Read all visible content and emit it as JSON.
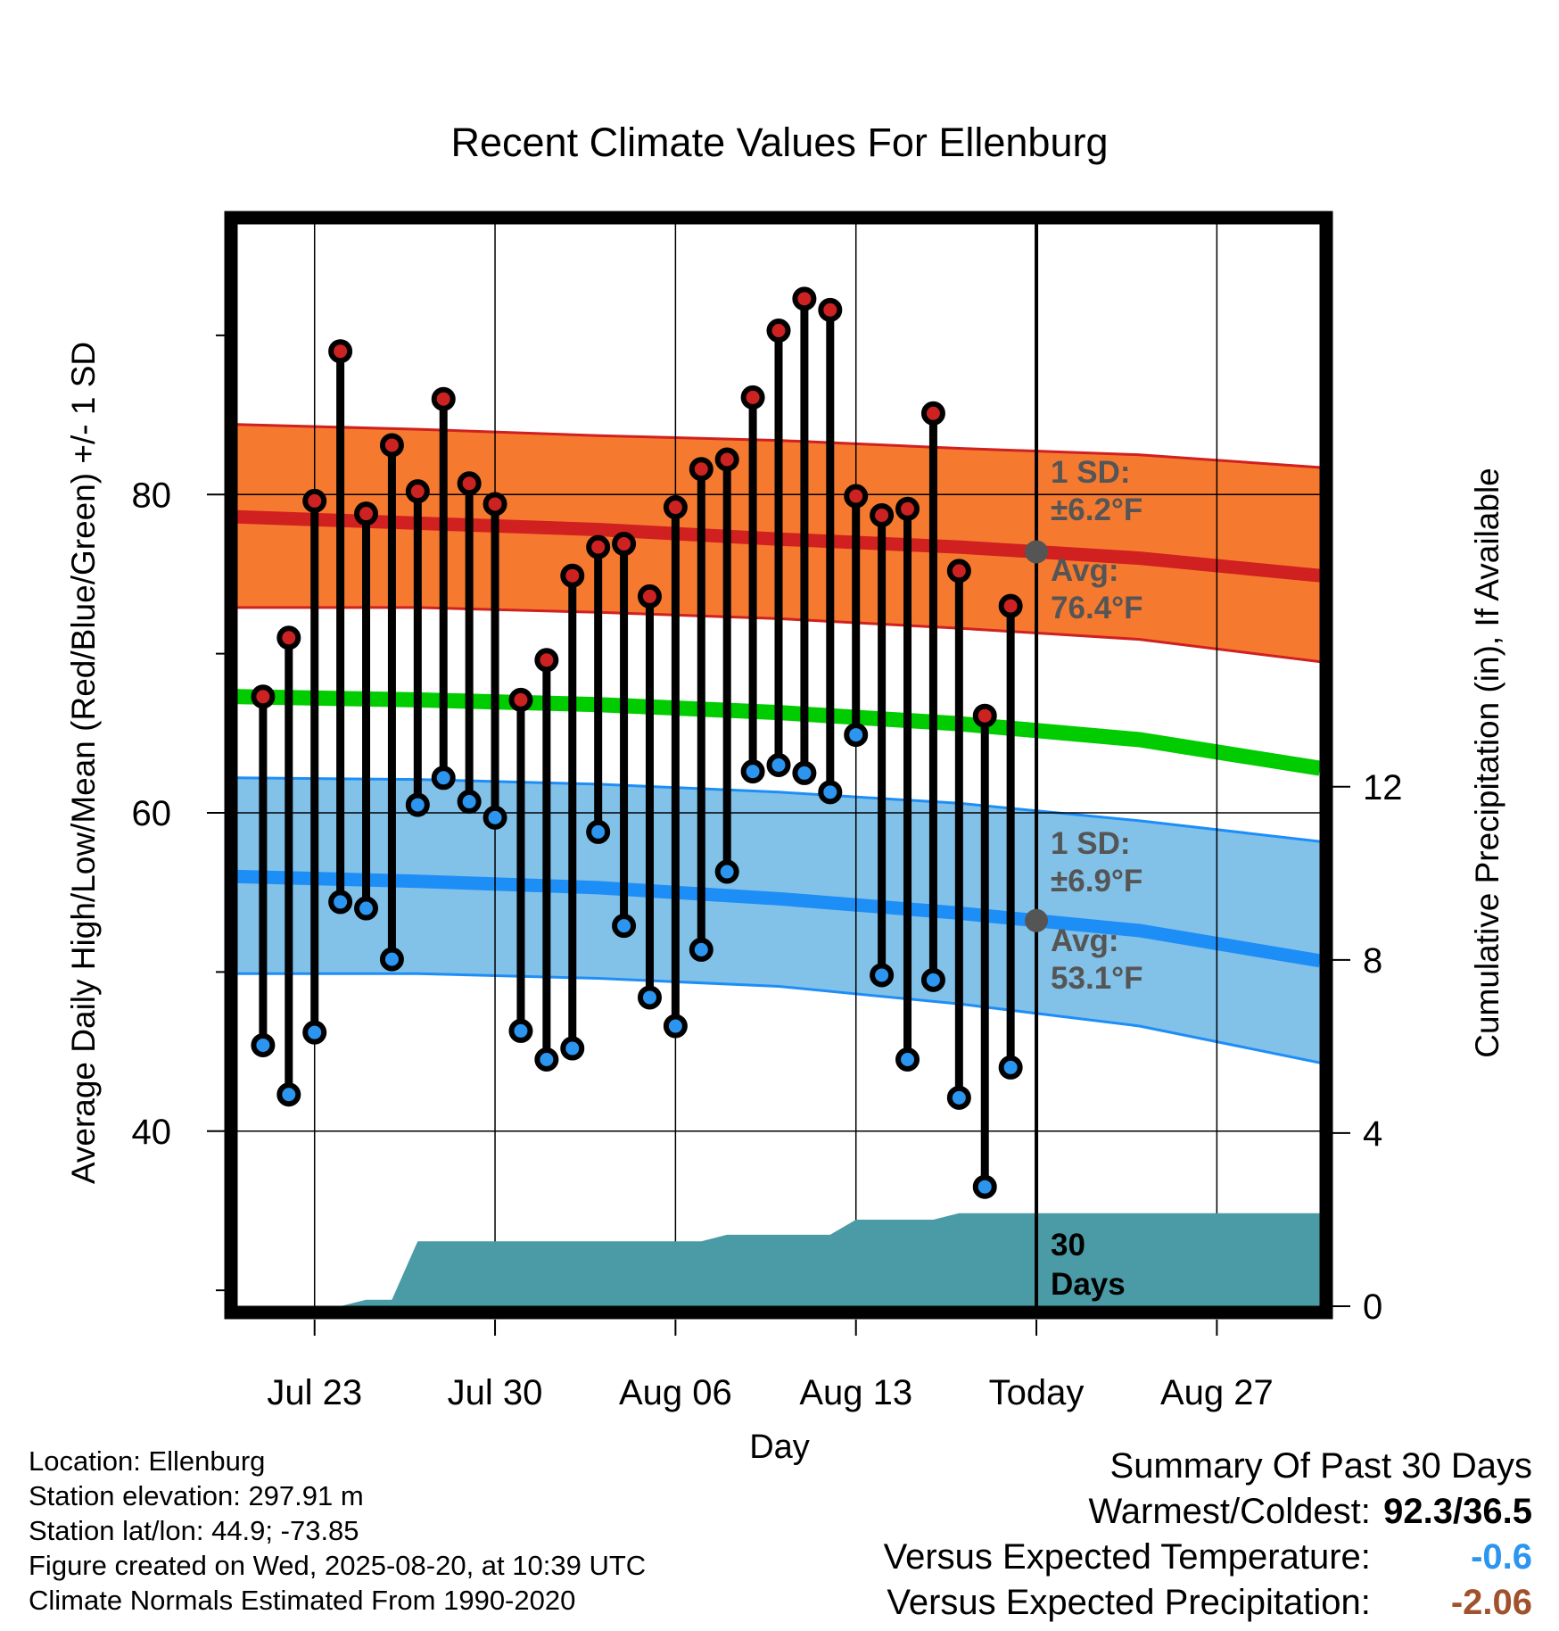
{
  "chart_data": {
    "type": "line",
    "title": "Recent Climate Values For Ellenburg",
    "xlabel": "Day",
    "ylabel_left": "Average Daily High/Low/Mean (Red/Blue/Green) +/- 1 SD",
    "ylabel_right": "Cumulative Precipitation (in), If Available",
    "x_range": [
      "2025-07-20",
      "2025-08-31"
    ],
    "ylim_left": [
      29,
      97
    ],
    "ylim_right": [
      0,
      25
    ],
    "x_ticks": [
      {
        "date": "2025-07-23",
        "label": "Jul 23"
      },
      {
        "date": "2025-07-30",
        "label": "Jul 30"
      },
      {
        "date": "2025-08-06",
        "label": "Aug 06"
      },
      {
        "date": "2025-08-13",
        "label": "Aug 13"
      },
      {
        "date": "2025-08-20",
        "label": "Today"
      },
      {
        "date": "2025-08-27",
        "label": "Aug 27"
      }
    ],
    "y_ticks_left": [
      40,
      60,
      80
    ],
    "y_minor_ticks_left": [
      30,
      50,
      70,
      90
    ],
    "y_ticks_right": [
      0,
      4,
      8,
      12
    ],
    "grid": true,
    "today": "2025-08-20",
    "daily": [
      {
        "date": "2025-07-21",
        "high": 67.3,
        "low": 45.4
      },
      {
        "date": "2025-07-22",
        "high": 71.0,
        "low": 42.3
      },
      {
        "date": "2025-07-23",
        "high": 79.6,
        "low": 46.2
      },
      {
        "date": "2025-07-24",
        "high": 89.0,
        "low": 54.4
      },
      {
        "date": "2025-07-25",
        "high": 78.8,
        "low": 54.0
      },
      {
        "date": "2025-07-26",
        "high": 83.1,
        "low": 50.8
      },
      {
        "date": "2025-07-27",
        "high": 80.2,
        "low": 60.5
      },
      {
        "date": "2025-07-28",
        "high": 86.0,
        "low": 62.2
      },
      {
        "date": "2025-07-29",
        "high": 80.7,
        "low": 60.7
      },
      {
        "date": "2025-07-30",
        "high": 79.4,
        "low": 59.7
      },
      {
        "date": "2025-07-31",
        "high": 67.1,
        "low": 46.3
      },
      {
        "date": "2025-08-01",
        "high": 69.6,
        "low": 44.5
      },
      {
        "date": "2025-08-02",
        "high": 74.9,
        "low": 45.2
      },
      {
        "date": "2025-08-03",
        "high": 76.7,
        "low": 58.8
      },
      {
        "date": "2025-08-04",
        "high": 76.9,
        "low": 52.9
      },
      {
        "date": "2025-08-05",
        "high": 73.6,
        "low": 48.4
      },
      {
        "date": "2025-08-06",
        "high": 79.2,
        "low": 46.6
      },
      {
        "date": "2025-08-07",
        "high": 81.6,
        "low": 51.4
      },
      {
        "date": "2025-08-08",
        "high": 82.2,
        "low": 56.3
      },
      {
        "date": "2025-08-09",
        "high": 86.1,
        "low": 62.6
      },
      {
        "date": "2025-08-10",
        "high": 90.3,
        "low": 63.0
      },
      {
        "date": "2025-08-11",
        "high": 92.3,
        "low": 62.5
      },
      {
        "date": "2025-08-12",
        "high": 91.6,
        "low": 61.3
      },
      {
        "date": "2025-08-13",
        "high": 79.9,
        "low": 64.9
      },
      {
        "date": "2025-08-14",
        "high": 78.7,
        "low": 49.8
      },
      {
        "date": "2025-08-15",
        "high": 79.1,
        "low": 44.5
      },
      {
        "date": "2025-08-16",
        "high": 85.1,
        "low": 49.5
      },
      {
        "date": "2025-08-17",
        "high": 75.2,
        "low": 42.1
      },
      {
        "date": "2025-08-18",
        "high": 66.1,
        "low": 36.5
      },
      {
        "date": "2025-08-19",
        "high": 73.0,
        "low": 44.0
      }
    ],
    "normals": {
      "dates": [
        "2025-07-20",
        "2025-07-27",
        "2025-08-03",
        "2025-08-10",
        "2025-08-17",
        "2025-08-24",
        "2025-08-31"
      ],
      "high_mean": [
        78.6,
        78.2,
        77.8,
        77.2,
        76.7,
        76.0,
        74.9
      ],
      "high_upper": [
        84.4,
        84.1,
        83.7,
        83.4,
        82.9,
        82.5,
        81.7
      ],
      "high_lower": [
        72.9,
        72.9,
        72.6,
        72.2,
        71.6,
        70.9,
        69.5
      ],
      "mean_mean": [
        67.3,
        67.1,
        66.8,
        66.3,
        65.6,
        64.6,
        62.8
      ],
      "low_mean": [
        56.0,
        55.7,
        55.3,
        54.6,
        53.7,
        52.6,
        50.7
      ],
      "low_upper": [
        62.2,
        62.1,
        61.8,
        61.3,
        60.6,
        59.5,
        58.2
      ],
      "low_lower": [
        49.9,
        49.9,
        49.6,
        49.1,
        48.0,
        46.6,
        44.3
      ]
    },
    "precip_cumulative": [
      {
        "date": "2025-07-20",
        "value": 0.0
      },
      {
        "date": "2025-07-24",
        "value": 0.0
      },
      {
        "date": "2025-07-25",
        "value": 0.15
      },
      {
        "date": "2025-07-26",
        "value": 0.15
      },
      {
        "date": "2025-07-27",
        "value": 1.5
      },
      {
        "date": "2025-08-07",
        "value": 1.5
      },
      {
        "date": "2025-08-08",
        "value": 1.65
      },
      {
        "date": "2025-08-12",
        "value": 1.65
      },
      {
        "date": "2025-08-13",
        "value": 2.0
      },
      {
        "date": "2025-08-16",
        "value": 2.0
      },
      {
        "date": "2025-08-17",
        "value": 2.15
      },
      {
        "date": "2025-08-31",
        "value": 2.15
      }
    ],
    "annotations": {
      "high_sd_label": "1 SD:",
      "high_sd_value": "±6.2°F",
      "high_avg_label": "Avg:",
      "high_avg_value": "76.4°F",
      "low_sd_label": "1 SD:",
      "low_sd_value": "±6.9°F",
      "low_avg_label": "Avg:",
      "low_avg_value": "53.1°F",
      "period_label_1": "30",
      "period_label_2": "Days"
    },
    "colors": {
      "high_band": "#f57a30",
      "high_line": "#d0201f",
      "high_dot": "#cc2222",
      "mean_line": "#00cc00",
      "low_band": "#82c1e8",
      "low_line": "#1e8ef7",
      "low_dot": "#2b95ef",
      "precip": "#4a9ba6",
      "annotation": "#555555"
    }
  },
  "info": {
    "location": "Location: Ellenburg",
    "elevation": "Station elevation: 297.91 m",
    "latlon": "Station lat/lon: 44.9; -73.85",
    "created": "Figure created on Wed, 2025-08-20, at 10:39 UTC",
    "normals": "Climate Normals Estimated From 1990-2020"
  },
  "summary": {
    "title": "Summary Of Past 30 Days",
    "warmest_label": "Warmest/Coldest:",
    "warmest_value": "92.3/36.5",
    "temp_label": "Versus Expected Temperature:",
    "temp_value": "-0.6",
    "temp_color": "#2b95ef",
    "precip_label": "Versus Expected Precipitation:",
    "precip_value": "-2.06",
    "precip_color": "#a0522d"
  }
}
